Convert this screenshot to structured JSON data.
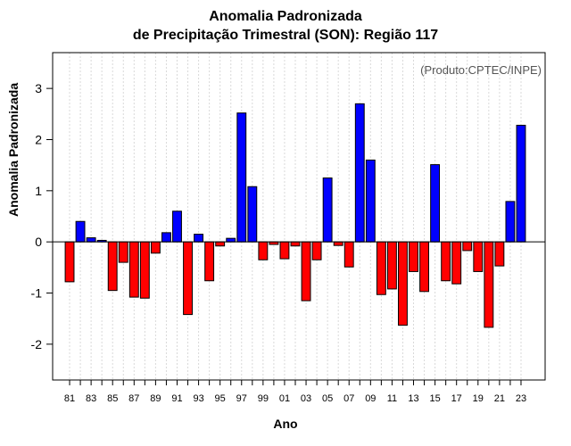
{
  "chart_data": {
    "type": "bar",
    "title": "Anomalia Padronizada",
    "subtitle": "de Precipitação Trimestral (SON): Região 117",
    "xlabel": "Ano",
    "ylabel": "Anomalia Padronizada",
    "credit": "(Produto:CPTEC/INPE)",
    "ylim": [
      -2.7,
      3.7
    ],
    "yticks": [
      -2,
      -1,
      0,
      1,
      2,
      3
    ],
    "xtick_labels": [
      "81",
      "83",
      "85",
      "87",
      "89",
      "91",
      "93",
      "95",
      "97",
      "99",
      "01",
      "03",
      "05",
      "07",
      "09",
      "11",
      "13",
      "15",
      "17",
      "19",
      "21",
      "23"
    ],
    "years": [
      "1981",
      "1982",
      "1983",
      "1984",
      "1985",
      "1986",
      "1987",
      "1988",
      "1989",
      "1990",
      "1991",
      "1992",
      "1993",
      "1994",
      "1995",
      "1996",
      "1997",
      "1998",
      "1999",
      "2000",
      "2001",
      "2002",
      "2003",
      "2004",
      "2005",
      "2006",
      "2007",
      "2008",
      "2009",
      "2010",
      "2011",
      "2012",
      "2013",
      "2014",
      "2015",
      "2016",
      "2017",
      "2018",
      "2019",
      "2020",
      "2021",
      "2022",
      "2023"
    ],
    "values": [
      -0.78,
      0.4,
      0.08,
      0.03,
      -0.95,
      -0.4,
      -1.08,
      -1.1,
      -0.22,
      0.18,
      0.6,
      -1.42,
      0.15,
      -0.76,
      -0.08,
      0.07,
      2.52,
      1.08,
      -0.35,
      -0.05,
      -0.33,
      -0.08,
      -1.15,
      -0.35,
      1.25,
      -0.07,
      -0.49,
      2.7,
      1.6,
      -1.03,
      -0.92,
      -1.63,
      -0.58,
      -0.97,
      1.51,
      -0.76,
      -0.82,
      -0.17,
      -0.58,
      -1.67,
      -0.47,
      0.79,
      2.28
    ],
    "colors": {
      "positive": "#0000ff",
      "negative": "#ff0000",
      "border": "#000000",
      "grid": "#d9d9d9"
    }
  }
}
